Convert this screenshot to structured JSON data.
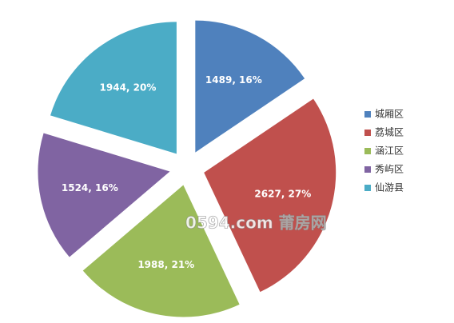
{
  "chart_data": {
    "type": "pie",
    "categories": [
      "城厢区",
      "荔城区",
      "涵江区",
      "秀屿区",
      "仙游县"
    ],
    "values": [
      1489,
      2627,
      1988,
      1524,
      1944
    ],
    "value_labels": [
      "1489, 16%",
      "2627, 27%",
      "1988, 21%",
      "1524, 16%",
      "1944, 20%"
    ],
    "colors": [
      "#4f81bd",
      "#c0504d",
      "#9bbb59",
      "#8064a2",
      "#4bacc6"
    ],
    "exploded": true,
    "legend": "right",
    "watermark": "0594.com 莆房网"
  }
}
